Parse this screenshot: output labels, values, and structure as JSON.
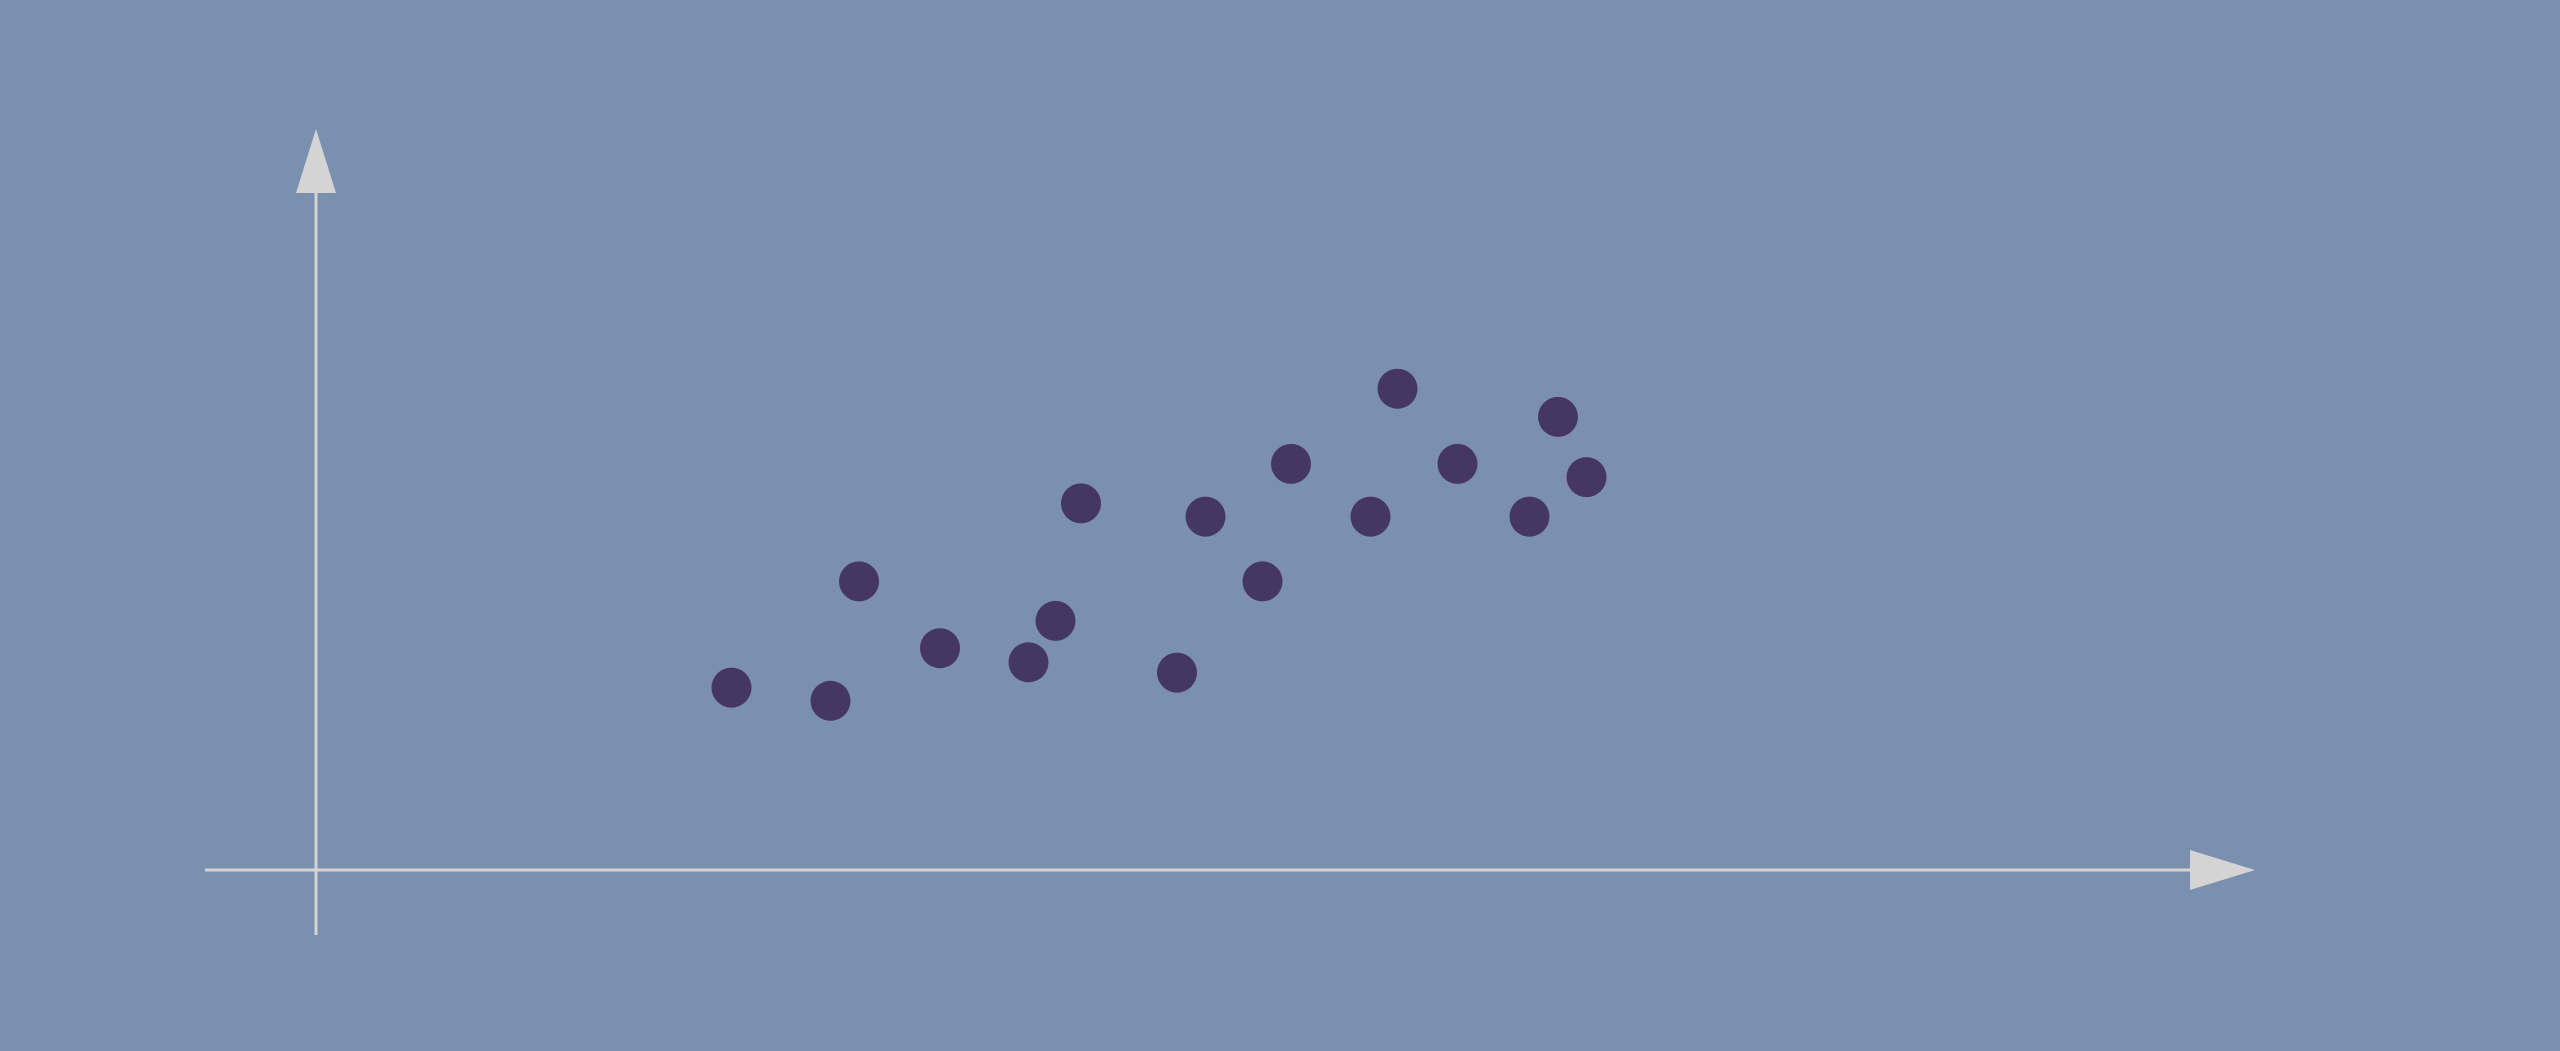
{
  "colors": {
    "background": "#7b8fae",
    "axis": "#d4d4d4",
    "point": "#453761"
  },
  "chart_data": {
    "type": "scatter",
    "title": "",
    "xlabel": "",
    "ylabel": "",
    "grid": false,
    "legend": "none",
    "xlim": [
      0,
      16
    ],
    "ylim": [
      0,
      7.5
    ],
    "series": [
      {
        "x": [
          2.77,
          3.43,
          3.62,
          4.16,
          4.75,
          4.93,
          5.1,
          5.74,
          5.93,
          6.31,
          6.5,
          7.03,
          7.21,
          7.61,
          8.09,
          8.28,
          8.47
        ],
        "y": [
          1.94,
          1.8,
          3.07,
          2.36,
          2.21,
          2.65,
          3.9,
          2.1,
          3.76,
          3.07,
          4.32,
          3.76,
          5.12,
          4.32,
          3.76,
          4.82,
          4.18
        ]
      }
    ]
  }
}
